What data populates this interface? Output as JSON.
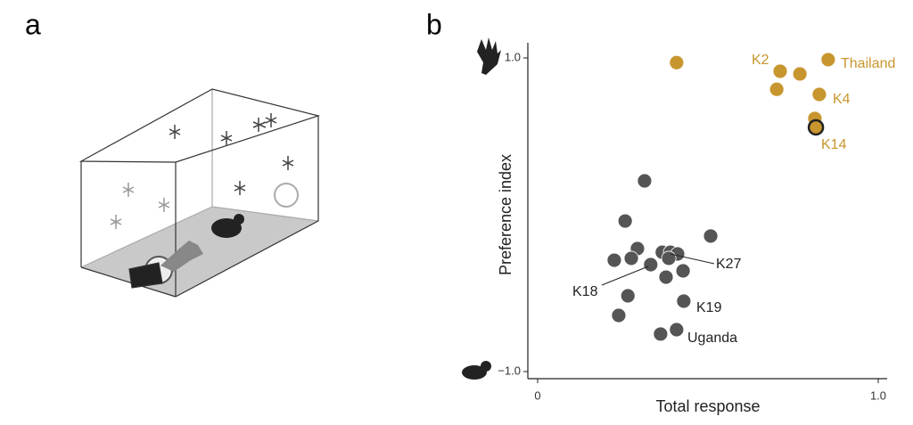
{
  "panel_labels": [
    "a",
    "b"
  ],
  "chart_data": {
    "type": "scatter",
    "xlabel": "Total response",
    "ylabel": "Preference index",
    "xlim": [
      0,
      1
    ],
    "ylim": [
      -1,
      1
    ],
    "xticks": [
      0,
      {
        "value": 1,
        "label": "1.0"
      }
    ],
    "yticks": [
      {
        "value": -1,
        "label": "−1.0"
      },
      {
        "value": 1,
        "label": "1.0"
      }
    ],
    "series": [
      {
        "color": "#c8962e",
        "x": [
          0.408,
          0.712,
          0.77,
          0.853,
          0.702,
          0.827,
          0.814
        ],
        "values": [
          0.97,
          0.915,
          0.898,
          0.989,
          0.8,
          0.767,
          0.614
        ]
      },
      {
        "color": "#c8962e",
        "edgecolor": "#222222",
        "x": [
          0.817
        ],
        "values": [
          0.557
        ]
      },
      {
        "color": "#555555",
        "x": [
          0.314,
          0.257,
          0.508,
          0.293,
          0.366,
          0.39,
          0.411,
          0.225,
          0.275,
          0.332,
          0.385,
          0.427,
          0.377,
          0.265,
          0.429,
          0.238,
          0.361,
          0.408
        ],
        "values": [
          0.216,
          -0.04,
          -0.136,
          -0.216,
          -0.239,
          -0.239,
          -0.25,
          -0.29,
          -0.278,
          -0.318,
          -0.278,
          -0.358,
          -0.398,
          -0.517,
          -0.551,
          -0.642,
          -0.761,
          -0.733
        ]
      }
    ],
    "annotations": [
      "K2",
      "Thailand",
      "K4",
      "K14",
      "K27",
      "K18",
      "K19",
      "Uganda"
    ]
  }
}
